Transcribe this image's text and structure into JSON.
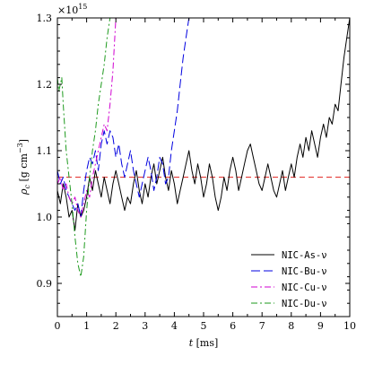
{
  "chart_data": {
    "type": "line",
    "title": "",
    "xlabel": "t [ms]",
    "ylabel": "ρ_c [g cm^-3]",
    "y_multiplier": "×10^15",
    "xlim": [
      0,
      10
    ],
    "ylim": [
      0.85,
      1.3
    ],
    "x_ticks": [
      0,
      1,
      2,
      3,
      4,
      5,
      6,
      7,
      8,
      9,
      10
    ],
    "x_tick_labels": [
      "0",
      "1",
      "2",
      "3",
      "4",
      "5",
      "6",
      "7",
      "8",
      "9",
      "10"
    ],
    "y_ticks": [
      0.9,
      1.0,
      1.1,
      1.2,
      1.3
    ],
    "y_tick_labels": [
      "0.9",
      "1.0",
      "1.1",
      "1.2",
      "1.3"
    ],
    "grid": false,
    "legend_position": "bottom-right",
    "reference_line": {
      "y": 1.06,
      "color": "#e0201c",
      "style": "dashed"
    },
    "series": [
      {
        "name": "NIC-As-ν",
        "color": "#000000",
        "dash": "solid",
        "x": [
          0.0,
          0.1,
          0.2,
          0.3,
          0.4,
          0.5,
          0.6,
          0.7,
          0.8,
          0.9,
          1.0,
          1.1,
          1.2,
          1.3,
          1.4,
          1.5,
          1.6,
          1.7,
          1.8,
          1.9,
          2.0,
          2.1,
          2.2,
          2.3,
          2.4,
          2.5,
          2.6,
          2.7,
          2.8,
          2.9,
          3.0,
          3.1,
          3.2,
          3.3,
          3.4,
          3.5,
          3.6,
          3.7,
          3.8,
          3.9,
          4.0,
          4.1,
          4.2,
          4.3,
          4.4,
          4.5,
          4.6,
          4.7,
          4.8,
          4.9,
          5.0,
          5.1,
          5.2,
          5.3,
          5.4,
          5.5,
          5.6,
          5.7,
          5.8,
          5.9,
          6.0,
          6.1,
          6.2,
          6.3,
          6.4,
          6.5,
          6.6,
          6.7,
          6.8,
          6.9,
          7.0,
          7.1,
          7.2,
          7.3,
          7.4,
          7.5,
          7.6,
          7.7,
          7.8,
          7.9,
          8.0,
          8.1,
          8.2,
          8.3,
          8.4,
          8.5,
          8.6,
          8.7,
          8.8,
          8.9,
          9.0,
          9.1,
          9.2,
          9.3,
          9.4,
          9.5,
          9.6,
          9.7,
          9.8,
          9.9,
          10.0
        ],
        "y": [
          1.04,
          1.02,
          1.05,
          1.03,
          1.0,
          1.01,
          0.98,
          1.02,
          1.0,
          1.01,
          1.03,
          1.06,
          1.04,
          1.07,
          1.05,
          1.03,
          1.06,
          1.04,
          1.02,
          1.05,
          1.07,
          1.05,
          1.03,
          1.01,
          1.03,
          1.02,
          1.05,
          1.07,
          1.04,
          1.02,
          1.05,
          1.03,
          1.06,
          1.08,
          1.05,
          1.07,
          1.09,
          1.06,
          1.04,
          1.07,
          1.05,
          1.02,
          1.04,
          1.06,
          1.08,
          1.1,
          1.07,
          1.05,
          1.08,
          1.06,
          1.03,
          1.05,
          1.08,
          1.06,
          1.03,
          1.01,
          1.03,
          1.06,
          1.04,
          1.07,
          1.09,
          1.07,
          1.04,
          1.06,
          1.08,
          1.1,
          1.11,
          1.09,
          1.07,
          1.05,
          1.04,
          1.06,
          1.08,
          1.06,
          1.04,
          1.03,
          1.05,
          1.07,
          1.04,
          1.06,
          1.08,
          1.06,
          1.09,
          1.11,
          1.09,
          1.12,
          1.1,
          1.13,
          1.11,
          1.09,
          1.12,
          1.14,
          1.12,
          1.15,
          1.14,
          1.17,
          1.16,
          1.2,
          1.24,
          1.27,
          1.3
        ]
      },
      {
        "name": "NIC-Bu-ν",
        "color": "#0000e0",
        "dash": "long",
        "x": [
          0.0,
          0.1,
          0.2,
          0.3,
          0.4,
          0.5,
          0.6,
          0.7,
          0.8,
          0.9,
          1.0,
          1.1,
          1.2,
          1.3,
          1.4,
          1.5,
          1.6,
          1.7,
          1.8,
          1.9,
          2.0,
          2.1,
          2.2,
          2.3,
          2.4,
          2.5,
          2.6,
          2.7,
          2.8,
          2.9,
          3.0,
          3.1,
          3.2,
          3.3,
          3.4,
          3.5,
          3.6,
          3.7,
          3.8,
          3.9,
          4.0,
          4.1,
          4.2,
          4.3,
          4.4,
          4.5
        ],
        "y": [
          1.07,
          1.05,
          1.06,
          1.04,
          1.03,
          1.02,
          1.01,
          1.02,
          1.0,
          1.04,
          1.07,
          1.09,
          1.08,
          1.1,
          1.07,
          1.11,
          1.13,
          1.11,
          1.13,
          1.12,
          1.09,
          1.11,
          1.08,
          1.06,
          1.08,
          1.1,
          1.07,
          1.05,
          1.03,
          1.05,
          1.07,
          1.09,
          1.07,
          1.04,
          1.06,
          1.09,
          1.08,
          1.05,
          1.06,
          1.1,
          1.13,
          1.16,
          1.2,
          1.24,
          1.27,
          1.3
        ]
      },
      {
        "name": "NIC-Cu-ν",
        "color": "#d000d0",
        "dash": "dashdot",
        "x": [
          0.0,
          0.1,
          0.2,
          0.3,
          0.4,
          0.5,
          0.6,
          0.7,
          0.8,
          0.9,
          1.0,
          1.1,
          1.2,
          1.3,
          1.4,
          1.5,
          1.6,
          1.7,
          1.8,
          1.9,
          2.0
        ],
        "y": [
          1.05,
          1.06,
          1.04,
          1.05,
          1.03,
          1.02,
          1.03,
          1.01,
          1.0,
          1.02,
          1.04,
          1.03,
          1.06,
          1.08,
          1.1,
          1.12,
          1.14,
          1.13,
          1.17,
          1.22,
          1.3
        ]
      },
      {
        "name": "NIC-Du-ν",
        "color": "#1e9a1e",
        "dash": "dashdot",
        "x": [
          0.0,
          0.05,
          0.1,
          0.15,
          0.2,
          0.3,
          0.4,
          0.5,
          0.6,
          0.7,
          0.8,
          0.9,
          1.0,
          1.1,
          1.2,
          1.3,
          1.4,
          1.5,
          1.6,
          1.7,
          1.8
        ],
        "y": [
          1.21,
          1.19,
          1.2,
          1.21,
          1.17,
          1.1,
          1.06,
          1.02,
          0.97,
          0.93,
          0.91,
          0.94,
          1.01,
          1.06,
          1.1,
          1.13,
          1.17,
          1.2,
          1.23,
          1.27,
          1.3
        ]
      }
    ]
  }
}
